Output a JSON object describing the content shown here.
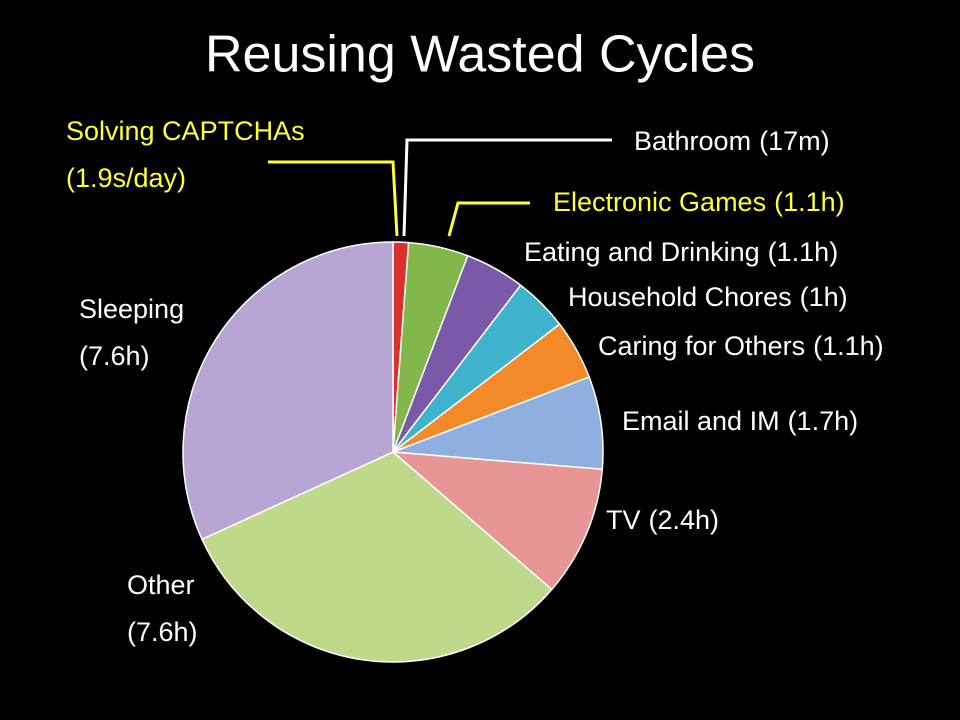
{
  "chart_data": {
    "type": "pie",
    "title": "Reusing Wasted Cycles",
    "categories": [
      "Solving CAPTCHAs",
      "Bathroom",
      "Electronic Games",
      "Eating and Drinking",
      "Household Chores",
      "Caring for Others",
      "Email and IM",
      "TV",
      "Other",
      "Sleeping"
    ],
    "values": [
      0.000528,
      0.2833,
      1.1,
      1.1,
      1,
      1.1,
      1.7,
      2.4,
      7.6,
      7.6
    ],
    "value_labels": [
      "(1.9s/day)",
      "(17m)",
      "(1.1h)",
      "(1.1h)",
      "(1h)",
      "(1.1h)",
      "(1.7h)",
      "(2.4h)",
      "(7.6h)",
      "(7.6h)"
    ],
    "colors": [
      "#f2e34a",
      "#d9312d",
      "#82b74b",
      "#7a5aa8",
      "#3fb3cc",
      "#f28a2a",
      "#8fb0de",
      "#e79595",
      "#bfd98a",
      "#b7a6d4"
    ],
    "label_colors": [
      "#ffff33",
      "#ffffff",
      "#ffff33",
      "#ffffff",
      "#ffffff",
      "#ffffff",
      "#ffffff",
      "#ffffff",
      "#ffffff",
      "#ffffff"
    ]
  }
}
